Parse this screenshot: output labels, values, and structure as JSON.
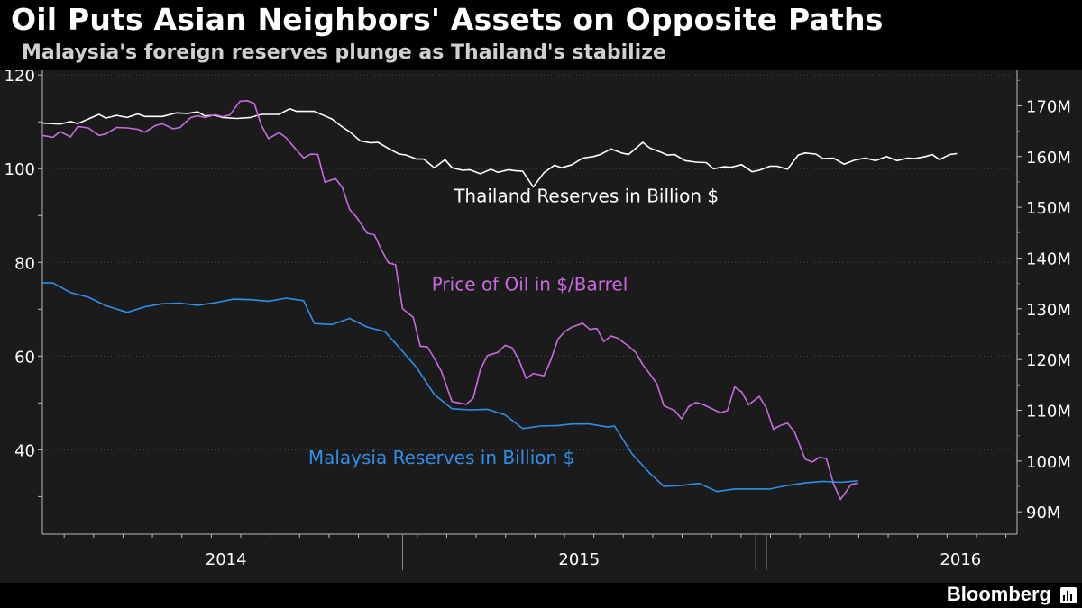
{
  "header": {
    "title": "Oil Puts Asian Neighbors' Assets on Opposite Paths",
    "subtitle": "Malaysia's foreign reserves plunge as Thailand's stabilize"
  },
  "footer": {
    "brand": "Bloomberg",
    "brand_icon": "bar-chart-icon"
  },
  "colors": {
    "background": "#1b1b1b",
    "thailand": "#ffffff",
    "oil": "#c86be0",
    "malaysia": "#2e8fea",
    "axis_text": "#ffffff"
  },
  "chart_data": {
    "type": "line",
    "title": "Oil Puts Asian Neighbors' Assets on Opposite Paths",
    "subtitle": "Malaysia's foreign reserves plunge as Thailand's stabilize",
    "x_axis": {
      "unit": "year (decimal)",
      "range": [
        2013.48,
        2016.24
      ],
      "tick_labels": [
        "2014",
        "2015",
        "2016"
      ]
    },
    "y_left": {
      "range": [
        22,
        121
      ],
      "ticks": [
        40,
        60,
        80,
        100,
        120
      ],
      "tick_labels": [
        "40",
        "60",
        "80",
        "100",
        "120"
      ]
    },
    "y_right": {
      "range": [
        85.6,
        177
      ],
      "ticks": [
        90,
        100,
        110,
        120,
        130,
        140,
        150,
        160,
        170
      ],
      "tick_labels": [
        "90M",
        "100M",
        "110M",
        "120M",
        "130M",
        "140M",
        "150M",
        "160M",
        "170M"
      ]
    },
    "series": [
      {
        "name": "Thailand Reserves in Billion $",
        "axis": "right",
        "points": [
          [
            2013.48,
            166.6
          ],
          [
            2013.53,
            166.4
          ],
          [
            2013.56,
            166.9
          ],
          [
            2013.58,
            166.5
          ],
          [
            2013.61,
            167.4
          ],
          [
            2013.64,
            168.3
          ],
          [
            2013.66,
            167.6
          ],
          [
            2013.69,
            168.1
          ],
          [
            2013.72,
            167.7
          ],
          [
            2013.75,
            168.4
          ],
          [
            2013.77,
            167.9
          ],
          [
            2013.82,
            167.9
          ],
          [
            2013.86,
            168.6
          ],
          [
            2013.89,
            168.5
          ],
          [
            2013.92,
            168.8
          ],
          [
            2013.94,
            168.0
          ],
          [
            2013.97,
            168.1
          ],
          [
            2013.99,
            167.7
          ],
          [
            2014.03,
            167.5
          ],
          [
            2014.07,
            167.7
          ],
          [
            2014.1,
            168.3
          ],
          [
            2014.15,
            168.3
          ],
          [
            2014.18,
            169.4
          ],
          [
            2014.2,
            168.9
          ],
          [
            2014.25,
            168.9
          ],
          [
            2014.28,
            168.0
          ],
          [
            2014.3,
            167.4
          ],
          [
            2014.33,
            165.8
          ],
          [
            2014.35,
            164.9
          ],
          [
            2014.38,
            163.1
          ],
          [
            2014.41,
            162.7
          ],
          [
            2014.43,
            162.8
          ],
          [
            2014.46,
            161.6
          ],
          [
            2014.49,
            160.5
          ],
          [
            2014.51,
            160.3
          ],
          [
            2014.54,
            159.5
          ],
          [
            2014.56,
            159.5
          ],
          [
            2014.59,
            157.8
          ],
          [
            2014.62,
            159.4
          ],
          [
            2014.64,
            157.8
          ],
          [
            2014.67,
            157.3
          ],
          [
            2014.69,
            157.4
          ],
          [
            2014.72,
            156.6
          ],
          [
            2014.75,
            157.5
          ],
          [
            2014.77,
            156.9
          ],
          [
            2014.8,
            157.4
          ],
          [
            2014.82,
            157.2
          ],
          [
            2014.84,
            157.1
          ],
          [
            2014.87,
            154.0
          ],
          [
            2014.9,
            156.8
          ],
          [
            2014.93,
            158.3
          ],
          [
            2014.95,
            157.8
          ],
          [
            2014.98,
            158.4
          ],
          [
            2015.01,
            159.7
          ],
          [
            2015.04,
            160.0
          ],
          [
            2015.06,
            160.4
          ],
          [
            2015.09,
            161.5
          ],
          [
            2015.12,
            160.7
          ],
          [
            2015.14,
            160.4
          ],
          [
            2015.18,
            162.8
          ],
          [
            2015.2,
            161.7
          ],
          [
            2015.23,
            160.9
          ],
          [
            2015.25,
            160.3
          ],
          [
            2015.27,
            160.4
          ],
          [
            2015.3,
            159.2
          ],
          [
            2015.33,
            158.9
          ],
          [
            2015.36,
            158.8
          ],
          [
            2015.38,
            157.6
          ],
          [
            2015.41,
            158.0
          ],
          [
            2015.43,
            157.9
          ],
          [
            2015.46,
            158.4
          ],
          [
            2015.49,
            157.0
          ],
          [
            2015.51,
            157.3
          ],
          [
            2015.54,
            158.1
          ],
          [
            2015.56,
            158.1
          ],
          [
            2015.59,
            157.5
          ],
          [
            2015.62,
            160.3
          ],
          [
            2015.64,
            160.7
          ],
          [
            2015.67,
            160.5
          ],
          [
            2015.69,
            159.6
          ],
          [
            2015.72,
            159.7
          ],
          [
            2015.75,
            158.5
          ],
          [
            2015.78,
            159.3
          ],
          [
            2015.81,
            159.7
          ],
          [
            2015.84,
            159.2
          ],
          [
            2015.87,
            160.0
          ],
          [
            2015.9,
            159.2
          ],
          [
            2015.93,
            159.7
          ],
          [
            2015.95,
            159.6
          ],
          [
            2015.98,
            160.0
          ],
          [
            2016.0,
            160.4
          ],
          [
            2016.02,
            159.4
          ],
          [
            2016.05,
            160.4
          ],
          [
            2016.07,
            160.6
          ]
        ]
      },
      {
        "name": "Price of Oil in $/Barrel",
        "axis": "left",
        "points": [
          [
            2013.48,
            107.1
          ],
          [
            2013.51,
            106.7
          ],
          [
            2013.53,
            107.9
          ],
          [
            2013.56,
            106.8
          ],
          [
            2013.58,
            109.0
          ],
          [
            2013.61,
            108.7
          ],
          [
            2013.64,
            107.1
          ],
          [
            2013.66,
            107.4
          ],
          [
            2013.69,
            108.8
          ],
          [
            2013.72,
            108.7
          ],
          [
            2013.75,
            108.4
          ],
          [
            2013.77,
            107.8
          ],
          [
            2013.8,
            109.2
          ],
          [
            2013.82,
            109.6
          ],
          [
            2013.85,
            108.5
          ],
          [
            2013.87,
            108.8
          ],
          [
            2013.9,
            110.9
          ],
          [
            2013.92,
            111.3
          ],
          [
            2013.94,
            110.9
          ],
          [
            2013.97,
            111.5
          ],
          [
            2013.99,
            111.1
          ],
          [
            2014.01,
            111.4
          ],
          [
            2014.04,
            114.4
          ],
          [
            2014.06,
            114.5
          ],
          [
            2014.08,
            113.9
          ],
          [
            2014.1,
            109.3
          ],
          [
            2014.12,
            106.4
          ],
          [
            2014.15,
            107.7
          ],
          [
            2014.17,
            106.6
          ],
          [
            2014.19,
            104.8
          ],
          [
            2014.22,
            102.3
          ],
          [
            2014.24,
            103.1
          ],
          [
            2014.26,
            103.0
          ],
          [
            2014.28,
            97.1
          ],
          [
            2014.31,
            97.9
          ],
          [
            2014.33,
            95.9
          ],
          [
            2014.35,
            91.3
          ],
          [
            2014.37,
            89.6
          ],
          [
            2014.4,
            86.2
          ],
          [
            2014.42,
            85.9
          ],
          [
            2014.44,
            82.7
          ],
          [
            2014.46,
            79.9
          ],
          [
            2014.48,
            79.5
          ],
          [
            2014.5,
            70.1
          ],
          [
            2014.53,
            68.3
          ],
          [
            2014.55,
            62.1
          ],
          [
            2014.57,
            62.0
          ],
          [
            2014.59,
            59.5
          ],
          [
            2014.61,
            56.7
          ],
          [
            2014.64,
            50.3
          ],
          [
            2014.66,
            50.0
          ],
          [
            2014.68,
            49.7
          ],
          [
            2014.7,
            51.0
          ],
          [
            2014.72,
            57.1
          ],
          [
            2014.74,
            60.1
          ],
          [
            2014.77,
            60.8
          ],
          [
            2014.79,
            62.3
          ],
          [
            2014.81,
            61.8
          ],
          [
            2014.83,
            59.1
          ],
          [
            2014.85,
            55.2
          ],
          [
            2014.87,
            56.3
          ],
          [
            2014.9,
            55.8
          ],
          [
            2014.92,
            59.2
          ],
          [
            2014.94,
            63.6
          ],
          [
            2014.96,
            65.3
          ],
          [
            2014.98,
            66.2
          ],
          [
            2015.01,
            67.0
          ],
          [
            2015.03,
            65.7
          ],
          [
            2015.05,
            65.9
          ],
          [
            2015.07,
            63.1
          ],
          [
            2015.09,
            64.3
          ],
          [
            2015.11,
            63.8
          ],
          [
            2015.14,
            62.1
          ],
          [
            2015.16,
            60.8
          ],
          [
            2015.18,
            58.2
          ],
          [
            2015.2,
            56.2
          ],
          [
            2015.22,
            54.1
          ],
          [
            2015.24,
            49.4
          ],
          [
            2015.27,
            48.4
          ],
          [
            2015.29,
            46.6
          ],
          [
            2015.31,
            49.2
          ],
          [
            2015.33,
            50.1
          ],
          [
            2015.35,
            49.7
          ],
          [
            2015.38,
            48.6
          ],
          [
            2015.4,
            47.9
          ],
          [
            2015.42,
            48.4
          ],
          [
            2015.44,
            53.4
          ],
          [
            2015.46,
            52.4
          ],
          [
            2015.48,
            49.6
          ],
          [
            2015.51,
            51.4
          ],
          [
            2015.53,
            48.9
          ],
          [
            2015.55,
            44.4
          ],
          [
            2015.57,
            45.2
          ],
          [
            2015.59,
            45.7
          ],
          [
            2015.61,
            43.8
          ],
          [
            2015.64,
            38.0
          ],
          [
            2015.66,
            37.4
          ],
          [
            2015.68,
            38.4
          ],
          [
            2015.7,
            38.1
          ],
          [
            2015.72,
            32.8
          ],
          [
            2015.74,
            29.4
          ],
          [
            2015.77,
            32.6
          ],
          [
            2015.79,
            32.9
          ]
        ]
      },
      {
        "name": "Malaysia Reserves in Billion $",
        "axis": "right",
        "points": [
          [
            2013.48,
            135.1
          ],
          [
            2013.51,
            135.1
          ],
          [
            2013.56,
            133.2
          ],
          [
            2013.61,
            132.3
          ],
          [
            2013.66,
            130.6
          ],
          [
            2013.72,
            129.3
          ],
          [
            2013.77,
            130.4
          ],
          [
            2013.82,
            131.0
          ],
          [
            2013.87,
            131.1
          ],
          [
            2013.92,
            130.7
          ],
          [
            2013.97,
            131.2
          ],
          [
            2014.02,
            131.9
          ],
          [
            2014.07,
            131.8
          ],
          [
            2014.12,
            131.5
          ],
          [
            2014.17,
            132.1
          ],
          [
            2014.22,
            131.6
          ],
          [
            2014.25,
            127.1
          ],
          [
            2014.3,
            126.9
          ],
          [
            2014.35,
            128.1
          ],
          [
            2014.4,
            126.4
          ],
          [
            2014.45,
            125.5
          ],
          [
            2014.49,
            122.4
          ],
          [
            2014.54,
            118.4
          ],
          [
            2014.59,
            113.1
          ],
          [
            2014.64,
            110.3
          ],
          [
            2014.69,
            110.1
          ],
          [
            2014.74,
            110.2
          ],
          [
            2014.79,
            109.1
          ],
          [
            2014.84,
            106.4
          ],
          [
            2014.89,
            106.9
          ],
          [
            2014.94,
            107.0
          ],
          [
            2014.98,
            107.3
          ],
          [
            2015.03,
            107.3
          ],
          [
            2015.08,
            106.7
          ],
          [
            2015.1,
            106.9
          ],
          [
            2015.15,
            101.4
          ],
          [
            2015.2,
            97.6
          ],
          [
            2015.24,
            95.0
          ],
          [
            2015.29,
            95.2
          ],
          [
            2015.34,
            95.6
          ],
          [
            2015.39,
            94.0
          ],
          [
            2015.44,
            94.5
          ],
          [
            2015.49,
            94.5
          ],
          [
            2015.54,
            94.5
          ],
          [
            2015.59,
            95.2
          ],
          [
            2015.64,
            95.7
          ],
          [
            2015.69,
            96.0
          ],
          [
            2015.74,
            95.8
          ],
          [
            2015.79,
            96.1
          ]
        ]
      }
    ],
    "annotations": [
      {
        "text": "Thailand Reserves in Billion $",
        "series": "Thailand Reserves in Billion $",
        "at": [
          2015.02,
          151.0
        ]
      },
      {
        "text": "Price of Oil in $/Barrel",
        "series": "Price of Oil in $/Barrel",
        "at": [
          2014.86,
          74.0
        ]
      },
      {
        "text": "Malaysia Reserves in Billion $",
        "series": "Malaysia Reserves in Billion $",
        "at": [
          2014.61,
          37.0
        ]
      }
    ]
  }
}
